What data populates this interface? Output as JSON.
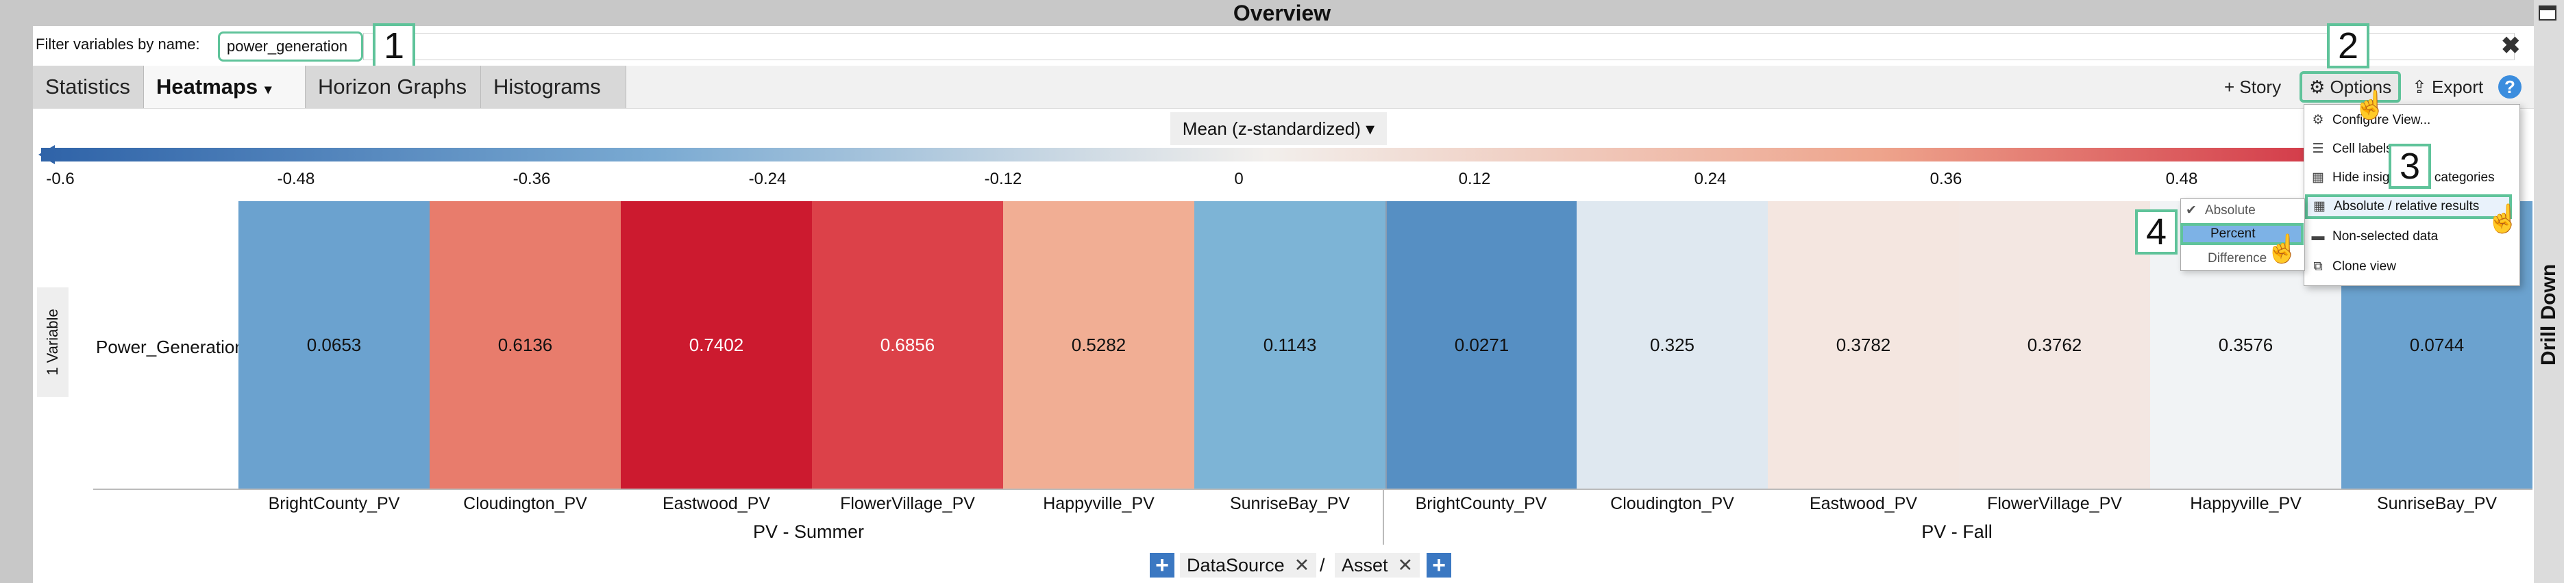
{
  "window": {
    "title": "Overview",
    "drill_down": "Drill Down"
  },
  "filter": {
    "label": "Filter variables by name:",
    "value": "power_generation",
    "clear": "✖"
  },
  "badges": [
    "1",
    "2",
    "3",
    "4"
  ],
  "tabs": [
    {
      "label": "Statistics"
    },
    {
      "label": "Heatmaps",
      "caret": "▾"
    },
    {
      "label": "Horizon Graphs"
    },
    {
      "label": "Histograms"
    }
  ],
  "toolbar": {
    "story": "+ Story",
    "options": "⚙ Options",
    "export": "⇪ Export",
    "help": "?"
  },
  "aggregation": {
    "label": "Mean (z-standardized)",
    "caret": "▾"
  },
  "scale": {
    "ticks": [
      "-0.6",
      "-0.48",
      "-0.36",
      "-0.24",
      "-0.12",
      "0",
      "0.12",
      "0.24",
      "0.36",
      "0.48"
    ],
    "colors": {
      "low": "#2f63a8",
      "mid": "#f2efec",
      "high": "#c8102e"
    }
  },
  "side": {
    "variables": "1 Variable",
    "caret": "▾"
  },
  "heatmap": {
    "row_label": "Power_Generation",
    "columns": [
      "BrightCounty_PV",
      "Cloudington_PV",
      "Eastwood_PV",
      "FlowerVillage_PV",
      "Happyville_PV",
      "SunriseBay_PV",
      "BrightCounty_PV",
      "Cloudington_PV",
      "Eastwood_PV",
      "FlowerVillage_PV",
      "Happyville_PV",
      "SunriseBay_PV"
    ],
    "values": [
      "0.0653",
      "0.6136",
      "0.7402",
      "0.6856",
      "0.5282",
      "0.1143",
      "0.0271",
      "0.325",
      "0.3782",
      "0.3762",
      "0.3576",
      "0.0744"
    ],
    "cell_colors": [
      "#6ba2cf",
      "#e87c6c",
      "#cc1a2f",
      "#dc4149",
      "#f1ae94",
      "#7db4d6",
      "#568fc3",
      "#dfe8f0",
      "#f4e6e0",
      "#f3e7e2",
      "#f1f3f5",
      "#6ba2cf"
    ],
    "text_colors": [
      "#111",
      "#111",
      "#fff",
      "#fff",
      "#111",
      "#111",
      "#111",
      "#111",
      "#111",
      "#111",
      "#111",
      "#111"
    ],
    "groups": [
      "PV - Summer",
      "PV - Fall"
    ]
  },
  "breadcrumb": {
    "plus": "+",
    "item1": "DataSource",
    "sep": "/",
    "item2": "Asset",
    "x": "✕"
  },
  "options_menu": {
    "items": [
      {
        "icon": "⚙",
        "label": "Configure View..."
      },
      {
        "icon": "☰",
        "label": "Cell labels"
      },
      {
        "icon": "▦",
        "label": "Hide insignificant categories"
      },
      {
        "icon": "▦",
        "label": "Absolute / relative results"
      },
      {
        "icon": "▬",
        "label": "Non-selected data"
      },
      {
        "icon": "⧉",
        "label": "Clone view"
      }
    ]
  },
  "submenu": {
    "items": [
      "Absolute",
      "Percent",
      "Difference"
    ],
    "check": "✔"
  },
  "cursor": "☝"
}
